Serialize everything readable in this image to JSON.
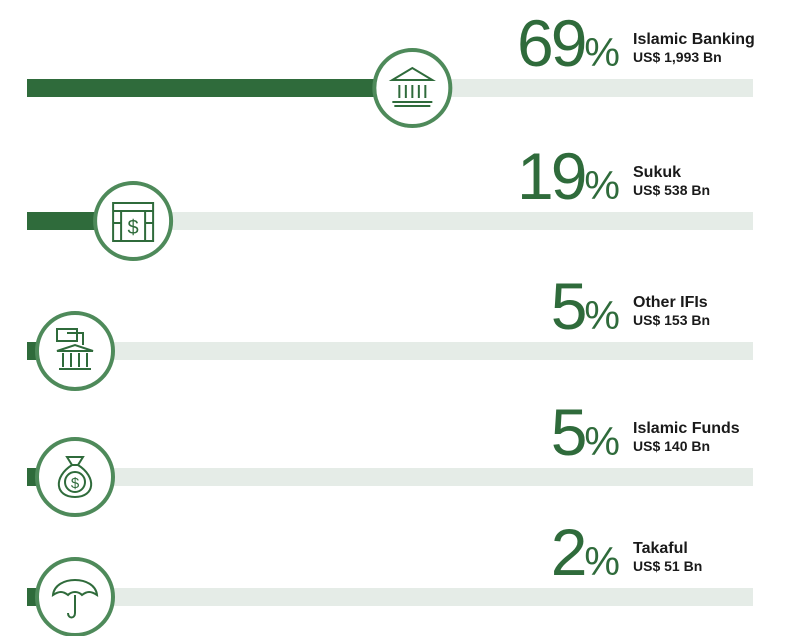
{
  "chart_data": {
    "type": "progress",
    "categories": [
      "Islamic Banking",
      "Sukuk",
      "Other IFIs",
      "Islamic Funds",
      "Takaful"
    ],
    "values": [
      69,
      19,
      5,
      5,
      2
    ],
    "value_labels": [
      "69%",
      "19%",
      "5%",
      "5%",
      "2%"
    ],
    "amounts": [
      "US$ 1,993 Bn",
      "US$ 538 Bn",
      "US$ 153 Bn",
      "US$ 140 Bn",
      "US$ 51 Bn"
    ],
    "color": "#2f6b3b",
    "track_color": "#e5ece7",
    "xlim": [
      0,
      130
    ]
  }
}
